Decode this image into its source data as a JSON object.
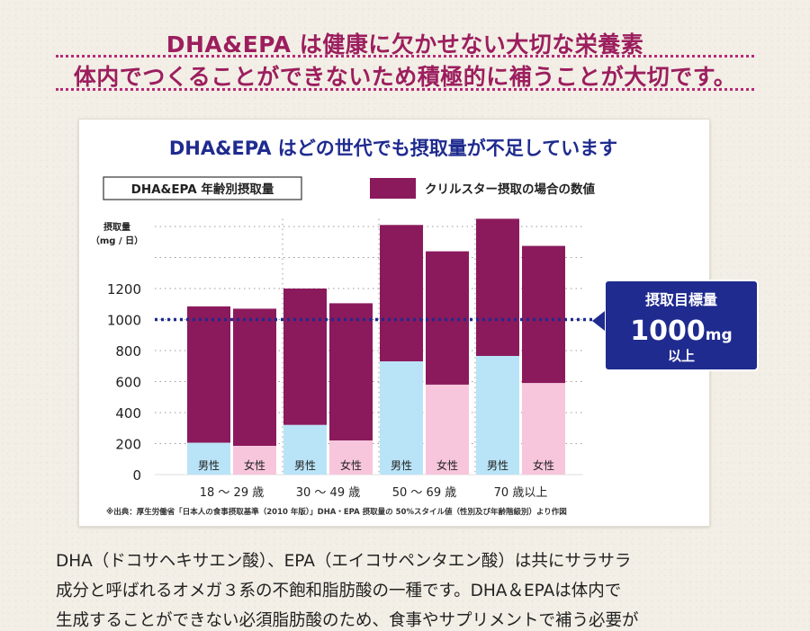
{
  "headline": {
    "line1": "DHA&EPA は健康に欠かせない大切な栄養素",
    "line2": "体内でつくることができないため積極的に補うことが大切です。"
  },
  "chart_data": {
    "type": "bar",
    "title": "DHA&EPA はどの世代でも摂取量が不足しています",
    "box_label": "DHA&EPA 年齢別摂取量",
    "legend": "クリルスター摂取の場合の数値",
    "ylabel_line1": "摂取量",
    "ylabel_line2": "（mg / 日）",
    "ylim": [
      0,
      1600
    ],
    "yticks": [
      0,
      200,
      400,
      600,
      800,
      1000,
      1200
    ],
    "target_line": 1000,
    "target_box": {
      "title": "摂取目標量",
      "value": "1000",
      "unit": "mg",
      "suffix": "以上"
    },
    "groups": [
      {
        "label": "18 ～ 29 歳",
        "bars": [
          {
            "label": "男性",
            "base": 205,
            "total": 1085
          },
          {
            "label": "女性",
            "base": 185,
            "total": 1070
          }
        ]
      },
      {
        "label": "30 ～ 49 歳",
        "bars": [
          {
            "label": "男性",
            "base": 320,
            "total": 1200
          },
          {
            "label": "女性",
            "base": 220,
            "total": 1105
          }
        ]
      },
      {
        "label": "50 ～ 69 歳",
        "bars": [
          {
            "label": "男性",
            "base": 730,
            "total": 1610
          },
          {
            "label": "女性",
            "base": 580,
            "total": 1440
          }
        ]
      },
      {
        "label": "70 歳以上",
        "bars": [
          {
            "label": "男性",
            "base": 765,
            "total": 1650
          },
          {
            "label": "女性",
            "base": 590,
            "total": 1475
          }
        ]
      }
    ],
    "colors": {
      "krill": "#8b1a5c",
      "male": "#b9e4f7",
      "female": "#f7c6dc",
      "target_line": "#1f2b8f",
      "target_box": "#1f2b8f",
      "title": "#1f2b8f"
    },
    "footnote": "※出典：厚生労働省「日本人の食事摂取基準（2010 年版）」DHA・EPA 摂取量の 50%スタイル値（性別及び年齢階級別）より作図"
  },
  "body_text": {
    "line1": "DHA（ドコサヘキサエン酸）、EPA（エイコサペンタエン酸）は共にサラサラ",
    "line2": "成分と呼ばれるオメガ３系の不飽和脂肪酸の一種です。DHA＆EPAは体内で",
    "line3": "生成することができない必須脂肪酸のため、食事やサプリメントで補う必要が"
  }
}
